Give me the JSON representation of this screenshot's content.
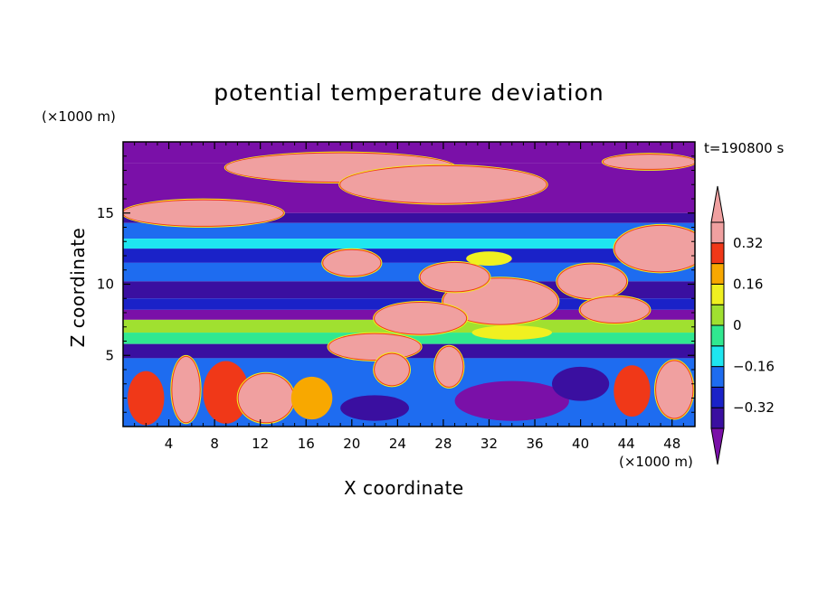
{
  "chart_data": {
    "type": "heatmap",
    "title": "potential temperature deviation",
    "xlabel": "X coordinate",
    "ylabel": "Z coordinate",
    "x_unit_label": "(×1000 m)",
    "y_unit_label": "(×1000 m)",
    "time_label": "t=190800 s",
    "xlim": [
      0,
      50
    ],
    "ylim": [
      0,
      20
    ],
    "x_ticks": [
      4,
      8,
      12,
      16,
      20,
      24,
      28,
      32,
      36,
      40,
      44,
      48
    ],
    "y_ticks": [
      5,
      10,
      15
    ],
    "colorbar": {
      "levels": [
        -0.4,
        -0.32,
        -0.24,
        -0.16,
        -0.08,
        0,
        0.08,
        0.16,
        0.24,
        0.32,
        0.4
      ],
      "labeled_levels": [
        0.32,
        0.16,
        0,
        -0.16,
        -0.32
      ],
      "labels": [
        "0.32",
        "0.16",
        "0",
        "−0.16",
        "−0.32"
      ],
      "colors": [
        "#7a10a8",
        "#3a0fa0",
        "#1a22c8",
        "#1e6cf0",
        "#1ee6f0",
        "#30e890",
        "#a0e030",
        "#f0f020",
        "#f8a800",
        "#f03818",
        "#f0a0a0"
      ],
      "extend": "both"
    },
    "layers": [
      {
        "z": [
          18.5,
          20.0
        ],
        "value": -0.45
      },
      {
        "z": [
          15.0,
          18.5
        ],
        "value": -0.45
      },
      {
        "z": [
          14.3,
          15.0
        ],
        "value": -0.36
      },
      {
        "z": [
          13.2,
          14.3
        ],
        "value": -0.2
      },
      {
        "z": [
          12.5,
          13.2
        ],
        "value": -0.12
      },
      {
        "z": [
          11.5,
          12.5
        ],
        "value": -0.28
      },
      {
        "z": [
          10.2,
          11.5
        ],
        "value": -0.2
      },
      {
        "z": [
          9.0,
          10.2
        ],
        "value": -0.36
      },
      {
        "z": [
          8.2,
          9.0
        ],
        "value": -0.28
      },
      {
        "z": [
          7.5,
          8.2
        ],
        "value": -0.45
      },
      {
        "z": [
          6.6,
          7.5
        ],
        "value": 0.04
      },
      {
        "z": [
          5.8,
          6.6
        ],
        "value": -0.04
      },
      {
        "z": [
          4.8,
          5.8
        ],
        "value": -0.36
      },
      {
        "z": [
          0.0,
          4.8
        ],
        "value": -0.2
      }
    ],
    "features": [
      {
        "x": 19,
        "z": 18.2,
        "rx": 10,
        "rz": 1.0,
        "value": 0.45
      },
      {
        "x": 28,
        "z": 17.0,
        "rx": 9,
        "rz": 1.3,
        "value": 0.45
      },
      {
        "x": 7,
        "z": 15.0,
        "rx": 7,
        "rz": 0.9,
        "value": 0.45
      },
      {
        "x": 46,
        "z": 18.6,
        "rx": 4,
        "rz": 0.5,
        "value": 0.45
      },
      {
        "x": 47,
        "z": 12.5,
        "rx": 4,
        "rz": 1.6,
        "value": 0.45
      },
      {
        "x": 41,
        "z": 10.2,
        "rx": 3,
        "rz": 1.2,
        "value": 0.45
      },
      {
        "x": 33,
        "z": 8.8,
        "rx": 5,
        "rz": 1.6,
        "value": 0.45
      },
      {
        "x": 26,
        "z": 7.6,
        "rx": 4,
        "rz": 1.1,
        "value": 0.45
      },
      {
        "x": 22,
        "z": 5.6,
        "rx": 4,
        "rz": 0.9,
        "value": 0.45
      },
      {
        "x": 20,
        "z": 11.5,
        "rx": 2.5,
        "rz": 0.9,
        "value": 0.45
      },
      {
        "x": 43,
        "z": 8.2,
        "rx": 3,
        "rz": 0.9,
        "value": 0.45
      },
      {
        "x": 29,
        "z": 10.5,
        "rx": 3,
        "rz": 1.0,
        "value": 0.45
      },
      {
        "x": 32,
        "z": 11.8,
        "rx": 2.0,
        "rz": 0.5,
        "value": 0.08
      },
      {
        "x": 34,
        "z": 6.6,
        "rx": 3.5,
        "rz": 0.5,
        "value": 0.12
      },
      {
        "x": 2.0,
        "z": 2.0,
        "rx": 1.6,
        "rz": 1.9,
        "value": 0.28
      },
      {
        "x": 5.5,
        "z": 2.6,
        "rx": 1.2,
        "rz": 2.3,
        "value": 0.45
      },
      {
        "x": 9.0,
        "z": 2.4,
        "rx": 2.0,
        "rz": 2.2,
        "value": 0.28
      },
      {
        "x": 12.5,
        "z": 2.0,
        "rx": 2.4,
        "rz": 1.7,
        "value": 0.45
      },
      {
        "x": 16.5,
        "z": 2.0,
        "rx": 1.8,
        "rz": 1.5,
        "value": 0.2
      },
      {
        "x": 23.5,
        "z": 4.0,
        "rx": 1.5,
        "rz": 1.1,
        "value": 0.45
      },
      {
        "x": 28.5,
        "z": 4.2,
        "rx": 1.2,
        "rz": 1.4,
        "value": 0.45
      },
      {
        "x": 44.5,
        "z": 2.5,
        "rx": 1.6,
        "rz": 1.8,
        "value": 0.3
      },
      {
        "x": 48.2,
        "z": 2.6,
        "rx": 1.6,
        "rz": 2.0,
        "value": 0.4
      },
      {
        "x": 34,
        "z": 1.8,
        "rx": 5,
        "rz": 1.4,
        "value": -0.45
      },
      {
        "x": 22,
        "z": 1.3,
        "rx": 3,
        "rz": 0.9,
        "value": -0.36
      },
      {
        "x": 40,
        "z": 3.0,
        "rx": 2.5,
        "rz": 1.2,
        "value": -0.36
      }
    ]
  }
}
